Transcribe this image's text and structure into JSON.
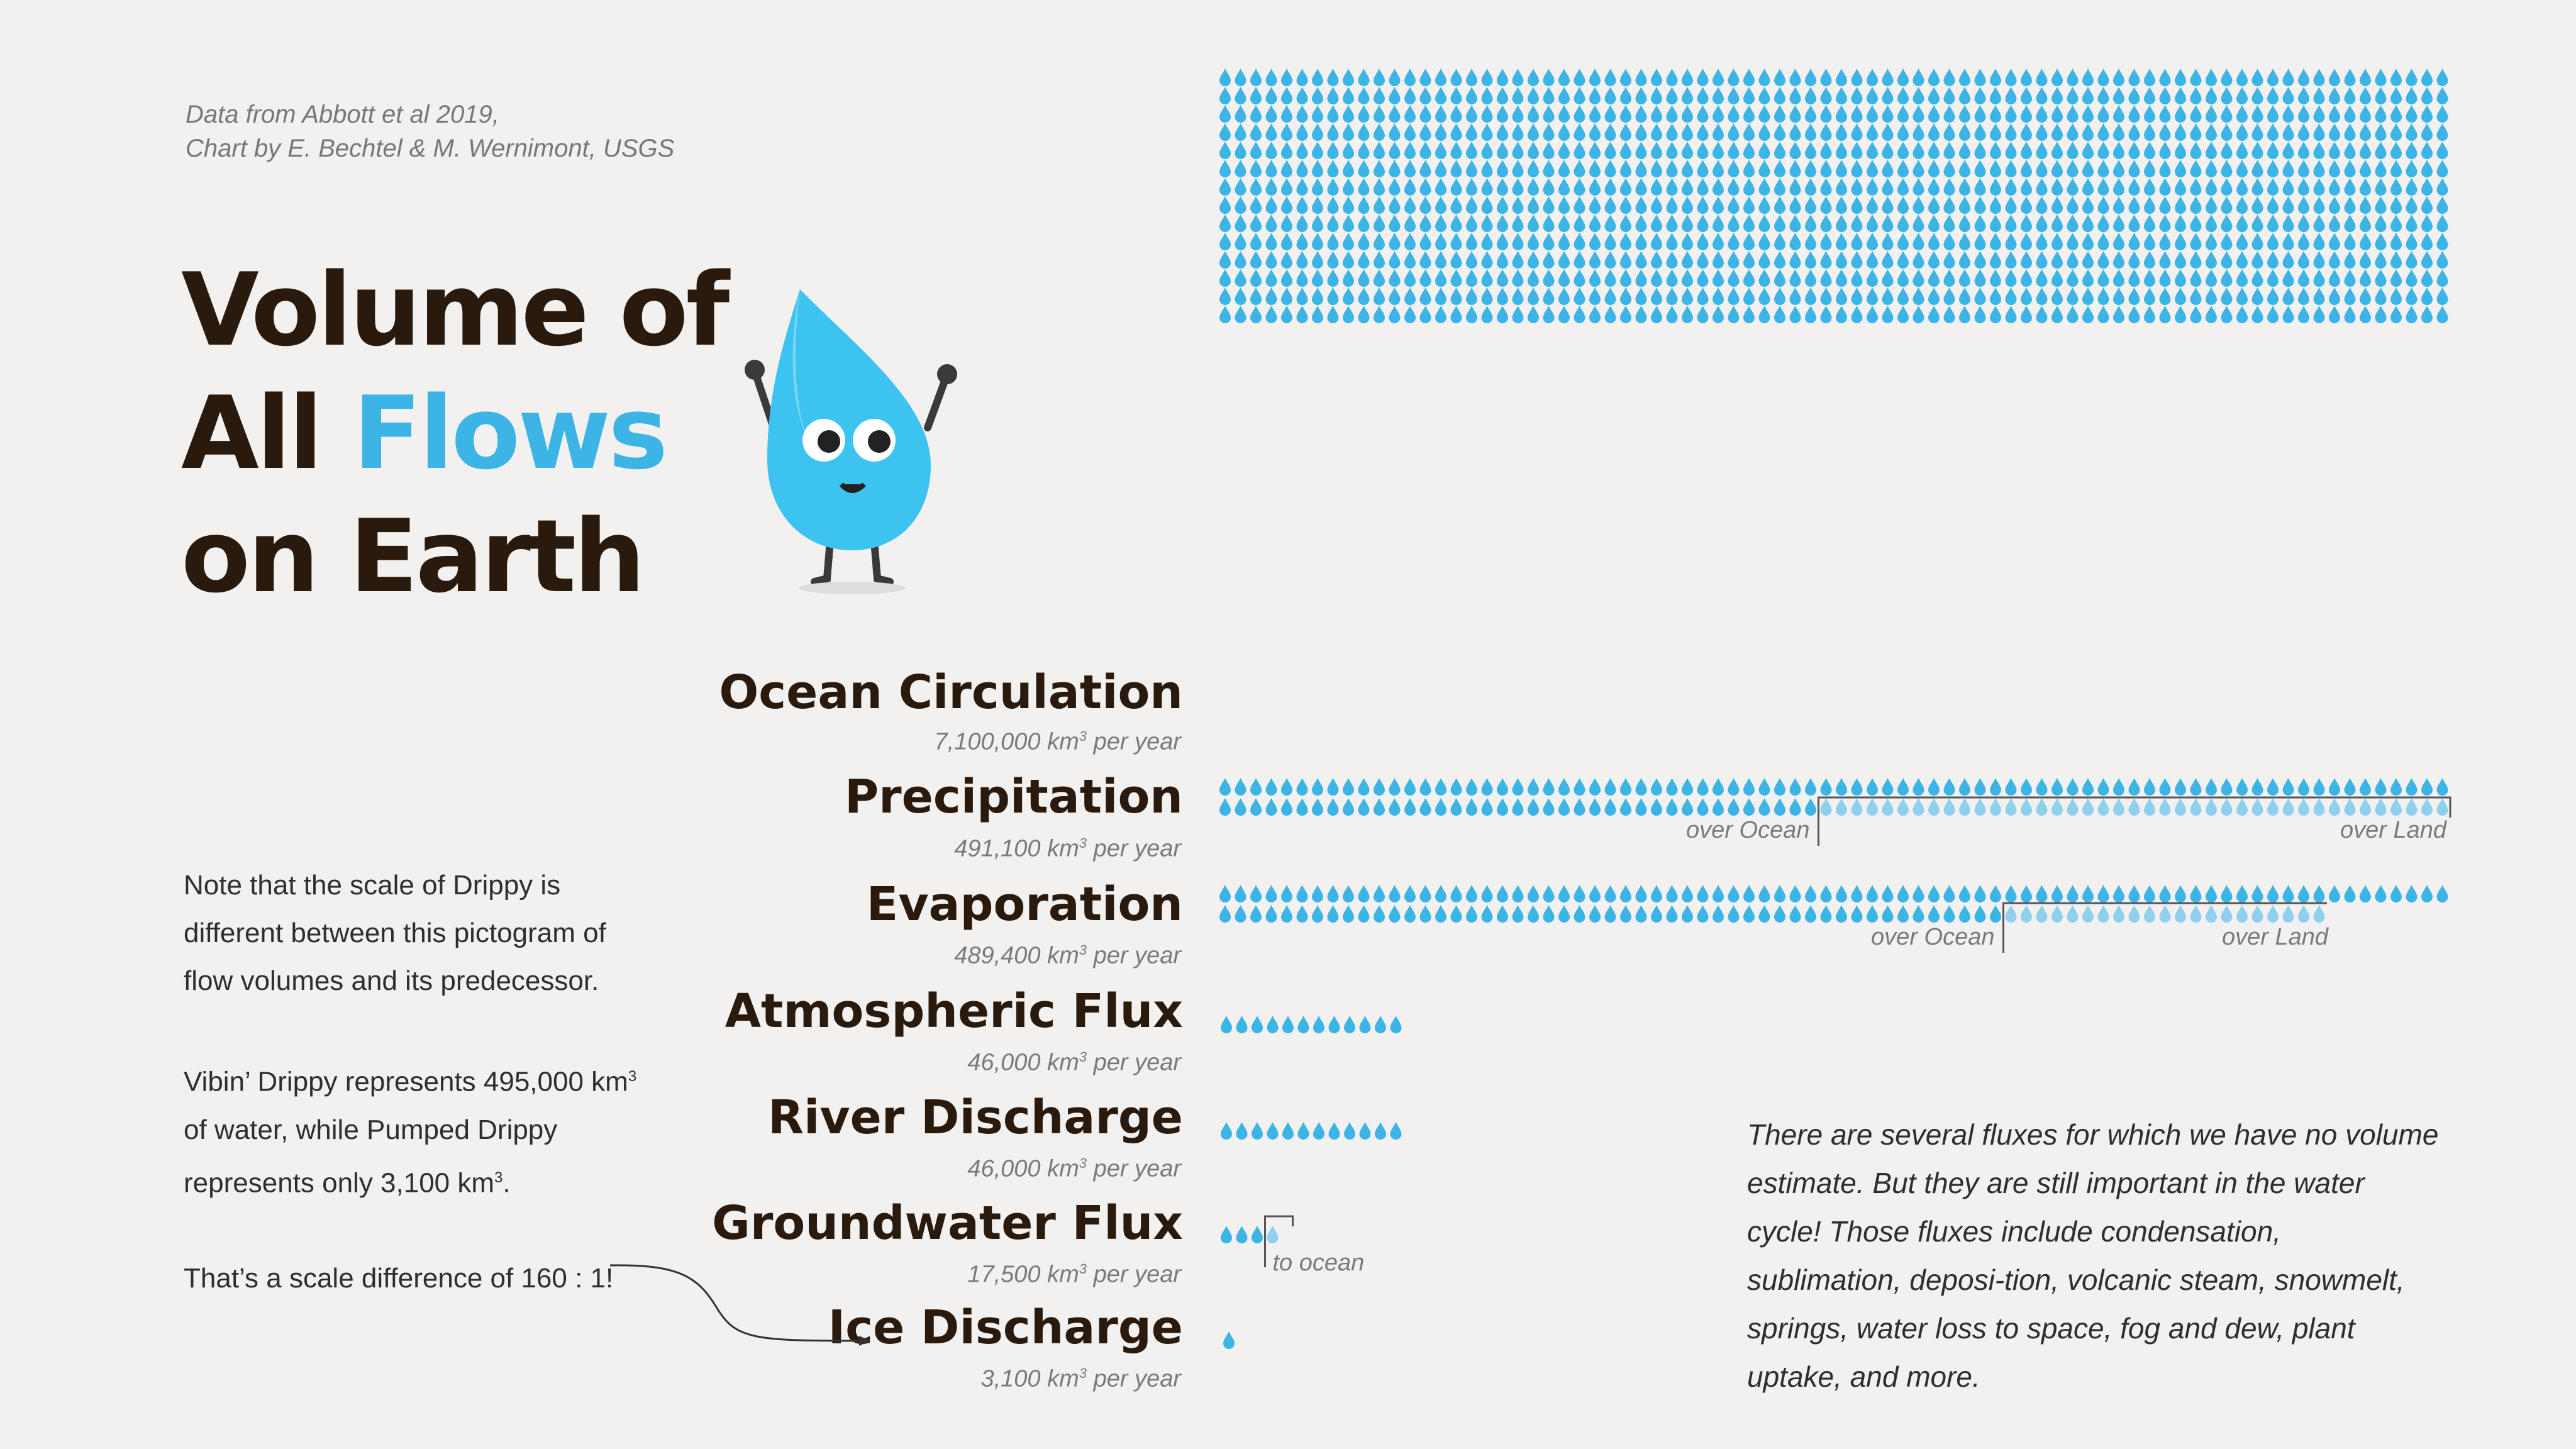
{
  "credit": {
    "line1": "Data from Abbott et al 2019,",
    "line2": "Chart by E. Bechtel & M. Wernimont, USGS"
  },
  "title": {
    "line1": "Volume of",
    "line2_a": "All ",
    "line2_b": "Flows",
    "line3": "on Earth"
  },
  "note": {
    "p1": "Note that the scale of Drippy is different between this pictogram of flow volumes and its predecessor.",
    "p2_a": "Vibin’ Drippy represents 495,000 km",
    "p2_sup": "3",
    "p2_b": " of water, while Pumped Drippy represents only 3,100 km",
    "p2_sup2": "3",
    "p2_c": ".",
    "p3": "That’s a scale difference of 160 : 1!"
  },
  "flux_note": "There are several fluxes for which we have no volume estimate. But they are still important in the water cycle! Those fluxes include condensation, sublimation, deposi-tion, volcanic steam, snowmelt, springs, water loss to space, fog and dew, plant uptake, and more.",
  "units": {
    "km": "km",
    "sup": "3",
    "per_year": " per year"
  },
  "colors": {
    "drop": "#3cb4e5",
    "drop_light": "#8fd0ee",
    "title": "#2a1a0d",
    "background": "#f2f1ef"
  },
  "chart_data": {
    "type": "pictogram",
    "unit_per_drop_km3": 3100,
    "categories": [
      {
        "name": "Ocean Circulation",
        "value": 7100000,
        "value_label": "7,100,000",
        "segments": []
      },
      {
        "name": "Precipitation",
        "value": 491100,
        "value_label": "491,100",
        "segments": [
          {
            "name": "over Ocean",
            "drops": 39
          },
          {
            "name": "over Land",
            "drops": 41
          }
        ]
      },
      {
        "name": "Evaporation",
        "value": 489400,
        "value_label": "489,400",
        "segments": [
          {
            "name": "over Ocean",
            "drops": 51
          },
          {
            "name": "over Land",
            "drops": 21
          }
        ]
      },
      {
        "name": "Atmospheric Flux",
        "value": 46000,
        "value_label": "46,000",
        "segments": []
      },
      {
        "name": "River Discharge",
        "value": 46000,
        "value_label": "46,000",
        "segments": []
      },
      {
        "name": "Groundwater Flux",
        "value": 17500,
        "value_label": "17,500",
        "segments": [
          {
            "name": "",
            "drops": 3
          },
          {
            "name": "to ocean",
            "drops": 1
          }
        ]
      },
      {
        "name": "Ice Discharge",
        "value": 3100,
        "value_label": "3,100",
        "segments": []
      }
    ]
  }
}
